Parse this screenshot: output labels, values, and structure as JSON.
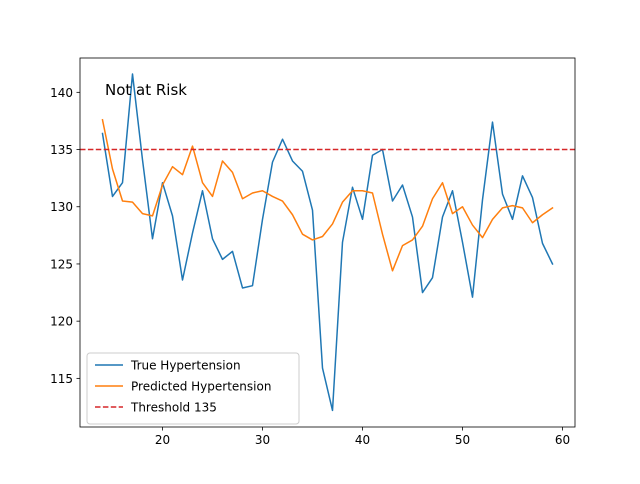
{
  "chart_data": {
    "type": "line",
    "annotation": "Not at Risk",
    "xlim": [
      11.75,
      61.25
    ],
    "ylim": [
      110.75,
      143.0
    ],
    "x_ticks": [
      20,
      30,
      40,
      50,
      60
    ],
    "y_ticks": [
      115,
      120,
      125,
      130,
      135,
      140
    ],
    "grid": false,
    "legend_position": "lower-left",
    "x": [
      14,
      15,
      16,
      17,
      18,
      19,
      20,
      21,
      22,
      23,
      24,
      25,
      26,
      27,
      28,
      29,
      30,
      31,
      32,
      33,
      34,
      35,
      36,
      37,
      38,
      39,
      40,
      41,
      42,
      43,
      44,
      45,
      46,
      47,
      48,
      49,
      50,
      51,
      52,
      53,
      54,
      55,
      56,
      57,
      58,
      59
    ],
    "series": [
      {
        "name": "True Hypertension",
        "color": "#1f77b4",
        "style": "solid",
        "values": [
          136.4,
          130.9,
          132.1,
          141.6,
          134.1,
          127.2,
          132.1,
          129.2,
          123.6,
          127.7,
          131.4,
          127.2,
          125.4,
          126.1,
          122.9,
          123.1,
          128.9,
          133.9,
          135.9,
          134.0,
          133.1,
          129.7,
          115.9,
          112.2,
          126.9,
          131.7,
          128.9,
          134.5,
          135.0,
          130.5,
          131.9,
          129.1,
          122.5,
          123.8,
          129.1,
          131.4,
          126.9,
          122.1,
          130.6,
          137.4,
          131.1,
          128.9,
          132.7,
          130.8,
          126.8,
          125.0
        ]
      },
      {
        "name": "Predicted Hypertension",
        "color": "#ff7f0e",
        "style": "solid",
        "values": [
          137.6,
          133.3,
          130.5,
          130.4,
          129.4,
          129.2,
          131.9,
          133.5,
          132.8,
          135.3,
          132.1,
          130.9,
          134.0,
          133.0,
          130.7,
          131.2,
          131.4,
          130.9,
          130.5,
          129.3,
          127.6,
          127.1,
          127.4,
          128.5,
          130.4,
          131.4,
          131.4,
          131.2,
          127.6,
          124.4,
          126.6,
          127.1,
          128.3,
          130.7,
          132.1,
          129.4,
          130.0,
          128.4,
          127.3,
          128.9,
          129.9,
          130.1,
          129.9,
          128.6,
          129.3,
          129.9
        ]
      }
    ],
    "threshold": {
      "name": "Threshold 135",
      "value": 135,
      "color": "#d62728",
      "style": "dashed"
    }
  }
}
